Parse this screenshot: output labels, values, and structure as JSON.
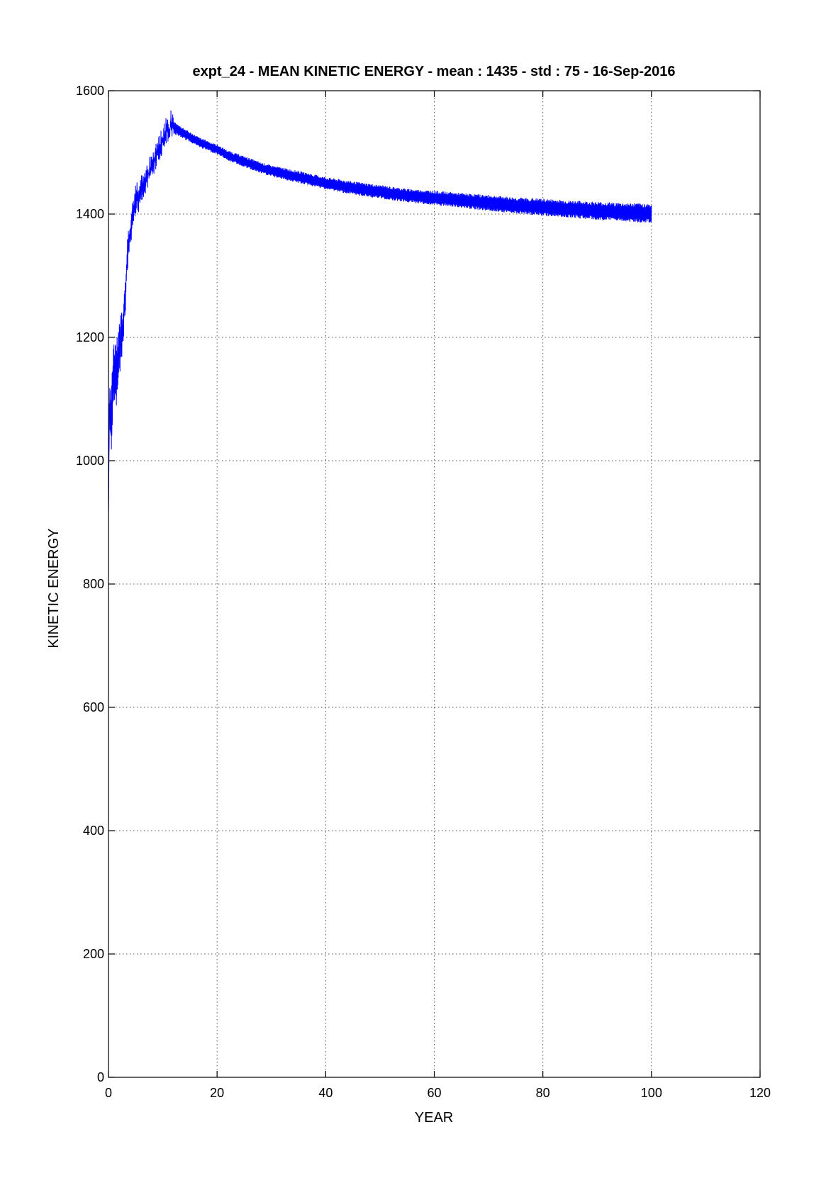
{
  "chart_data": {
    "type": "line",
    "title": "expt_24 - MEAN KINETIC ENERGY - mean :  1435 - std :    75 - 16-Sep-2016",
    "xlabel": "YEAR",
    "ylabel": "KINETIC ENERGY",
    "xlim": [
      0,
      120
    ],
    "ylim": [
      0,
      1600
    ],
    "x_ticks": [
      0,
      20,
      40,
      60,
      80,
      100,
      120
    ],
    "y_ticks": [
      0,
      200,
      400,
      600,
      800,
      1000,
      1200,
      1400,
      1600
    ],
    "x_tick_labels": [
      "0",
      "20",
      "40",
      "60",
      "80",
      "100",
      "120"
    ],
    "y_tick_labels": [
      "0",
      "200",
      "400",
      "600",
      "800",
      "1000",
      "1200",
      "1400",
      "1600"
    ],
    "grid": true,
    "line_color": "#0000ff",
    "series": [
      {
        "x": [
          0,
          0.2,
          0.5,
          1,
          1.5,
          2,
          2.5,
          3,
          3.5,
          4,
          4.5,
          5,
          5.5,
          6,
          6.5,
          7,
          7.5,
          8,
          8.5,
          9,
          9.5,
          10,
          10.5,
          11,
          11.5,
          12,
          13,
          14,
          15,
          16,
          17,
          18,
          19,
          20,
          22,
          25,
          28,
          30,
          35,
          40,
          45,
          50,
          55,
          60,
          65,
          70,
          75,
          80,
          85,
          90,
          95,
          100
        ],
        "y": [
          910,
          1100,
          1070,
          1150,
          1140,
          1180,
          1210,
          1250,
          1330,
          1370,
          1400,
          1430,
          1420,
          1440,
          1450,
          1460,
          1470,
          1480,
          1490,
          1500,
          1510,
          1520,
          1530,
          1540,
          1545,
          1540,
          1535,
          1530,
          1525,
          1520,
          1515,
          1512,
          1508,
          1505,
          1495,
          1485,
          1475,
          1470,
          1460,
          1450,
          1442,
          1436,
          1430,
          1426,
          1422,
          1418,
          1414,
          1411,
          1408,
          1405,
          1403,
          1401
        ],
        "band_half_width": [
          0,
          40,
          50,
          50,
          45,
          40,
          30,
          25,
          20,
          15,
          15,
          15,
          12,
          12,
          10,
          10,
          10,
          10,
          10,
          10,
          10,
          10,
          10,
          10,
          10,
          10,
          9,
          9,
          8,
          8,
          8,
          8,
          8,
          8,
          8,
          9,
          9,
          9,
          10,
          10,
          11,
          11,
          11,
          12,
          12,
          13,
          13,
          14,
          14,
          15,
          15,
          16
        ]
      }
    ]
  }
}
